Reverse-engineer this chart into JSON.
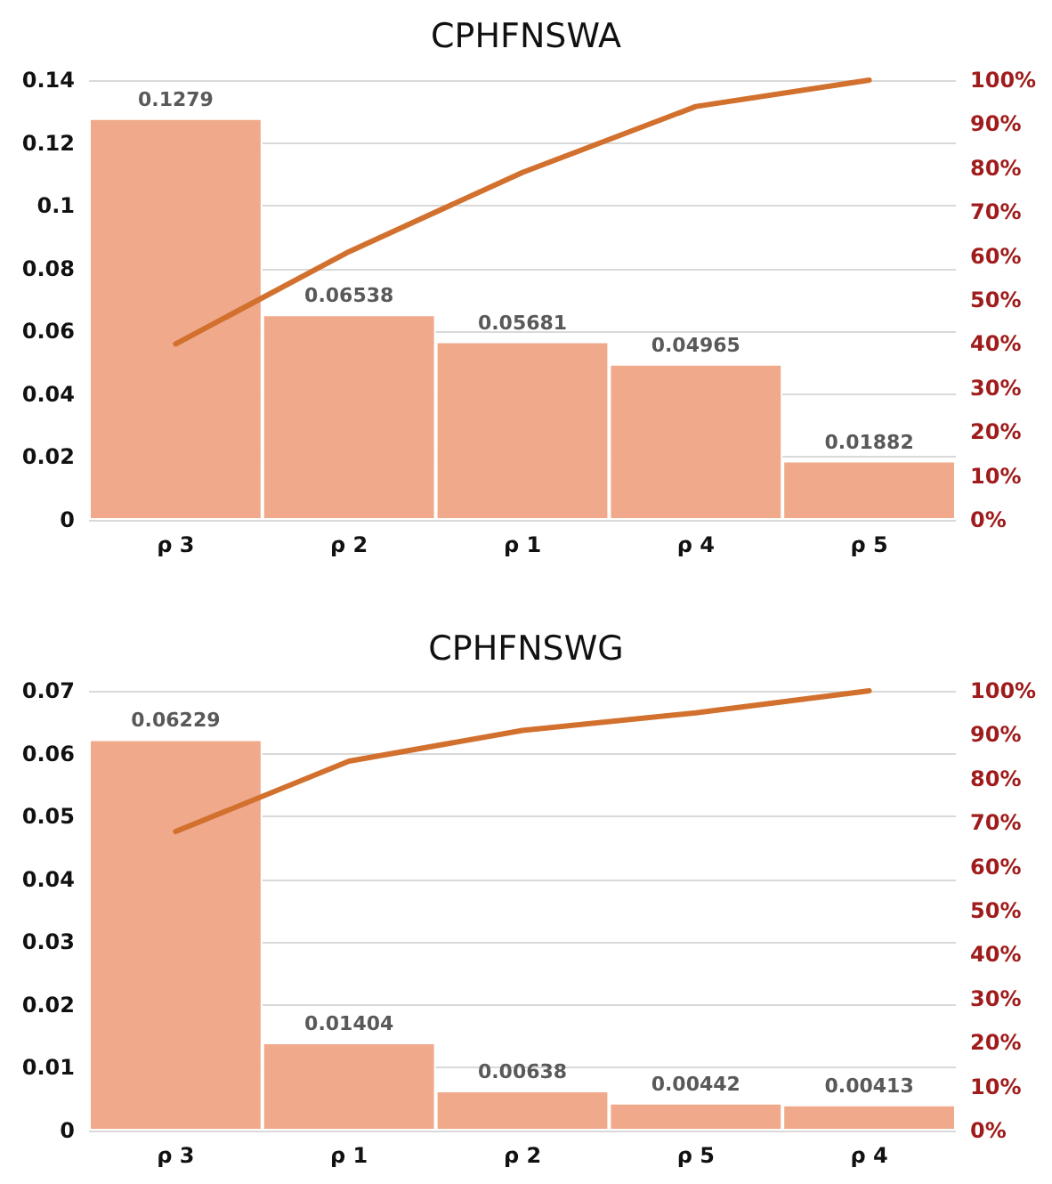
{
  "chart_data": [
    {
      "type": "bar",
      "title": "CPHFNSWA",
      "categories": [
        "ρ 3",
        "ρ 2",
        "ρ 1",
        "ρ 4",
        "ρ 5"
      ],
      "series": [
        {
          "color": "#f0a98a",
          "values": [
            0.1279,
            0.06538,
            0.05681,
            0.04965,
            0.01882
          ],
          "value_labels": [
            "0.1279",
            "0.06538",
            "0.05681",
            "0.04965",
            "0.01882"
          ]
        },
        {
          "type": "line",
          "axis": "y2",
          "color": "#d2702e",
          "values": [
            40,
            61,
            79,
            94,
            100
          ]
        }
      ],
      "ylim": [
        0,
        0.14
      ],
      "yticks": [
        0,
        0.02,
        0.04,
        0.06,
        0.08,
        0.1,
        0.12,
        0.14
      ],
      "y2lim": [
        0,
        100
      ],
      "y2ticks": [
        {
          "value": 0,
          "label": "0%"
        },
        {
          "value": 10,
          "label": "10%"
        },
        {
          "value": 20,
          "label": "20%"
        },
        {
          "value": 30,
          "label": "30%"
        },
        {
          "value": 40,
          "label": "40%"
        },
        {
          "value": 50,
          "label": "50%"
        },
        {
          "value": 60,
          "label": "60%"
        },
        {
          "value": 70,
          "label": "70%"
        },
        {
          "value": 80,
          "label": "80%"
        },
        {
          "value": 90,
          "label": "90%"
        },
        {
          "value": 100,
          "label": "100%"
        }
      ],
      "grid": "y",
      "marker": "none",
      "line_style": "solid"
    },
    {
      "type": "bar",
      "title": "CPHFNSWG",
      "categories": [
        "ρ 3",
        "ρ 1",
        "ρ 2",
        "ρ 5",
        "ρ 4"
      ],
      "series": [
        {
          "color": "#f0a98a",
          "values": [
            0.06229,
            0.01404,
            0.00638,
            0.00442,
            0.00413
          ],
          "value_labels": [
            "0.06229",
            "0.01404",
            "0.00638",
            "0.00442",
            "0.00413"
          ]
        },
        {
          "type": "line",
          "axis": "y2",
          "color": "#d2702e",
          "values": [
            68,
            84,
            91,
            95,
            100
          ]
        }
      ],
      "ylim": [
        0,
        0.07
      ],
      "yticks": [
        0,
        0.01,
        0.02,
        0.03,
        0.04,
        0.05,
        0.06,
        0.07
      ],
      "y2lim": [
        0,
        100
      ],
      "y2ticks": [
        {
          "value": 0,
          "label": "0%"
        },
        {
          "value": 10,
          "label": "10%"
        },
        {
          "value": 20,
          "label": "20%"
        },
        {
          "value": 30,
          "label": "30%"
        },
        {
          "value": 40,
          "label": "40%"
        },
        {
          "value": 50,
          "label": "50%"
        },
        {
          "value": 60,
          "label": "60%"
        },
        {
          "value": 70,
          "label": "70%"
        },
        {
          "value": 80,
          "label": "80%"
        },
        {
          "value": 90,
          "label": "90%"
        },
        {
          "value": 100,
          "label": "100%"
        }
      ],
      "grid": "y",
      "marker": "none",
      "line_style": "solid"
    }
  ]
}
